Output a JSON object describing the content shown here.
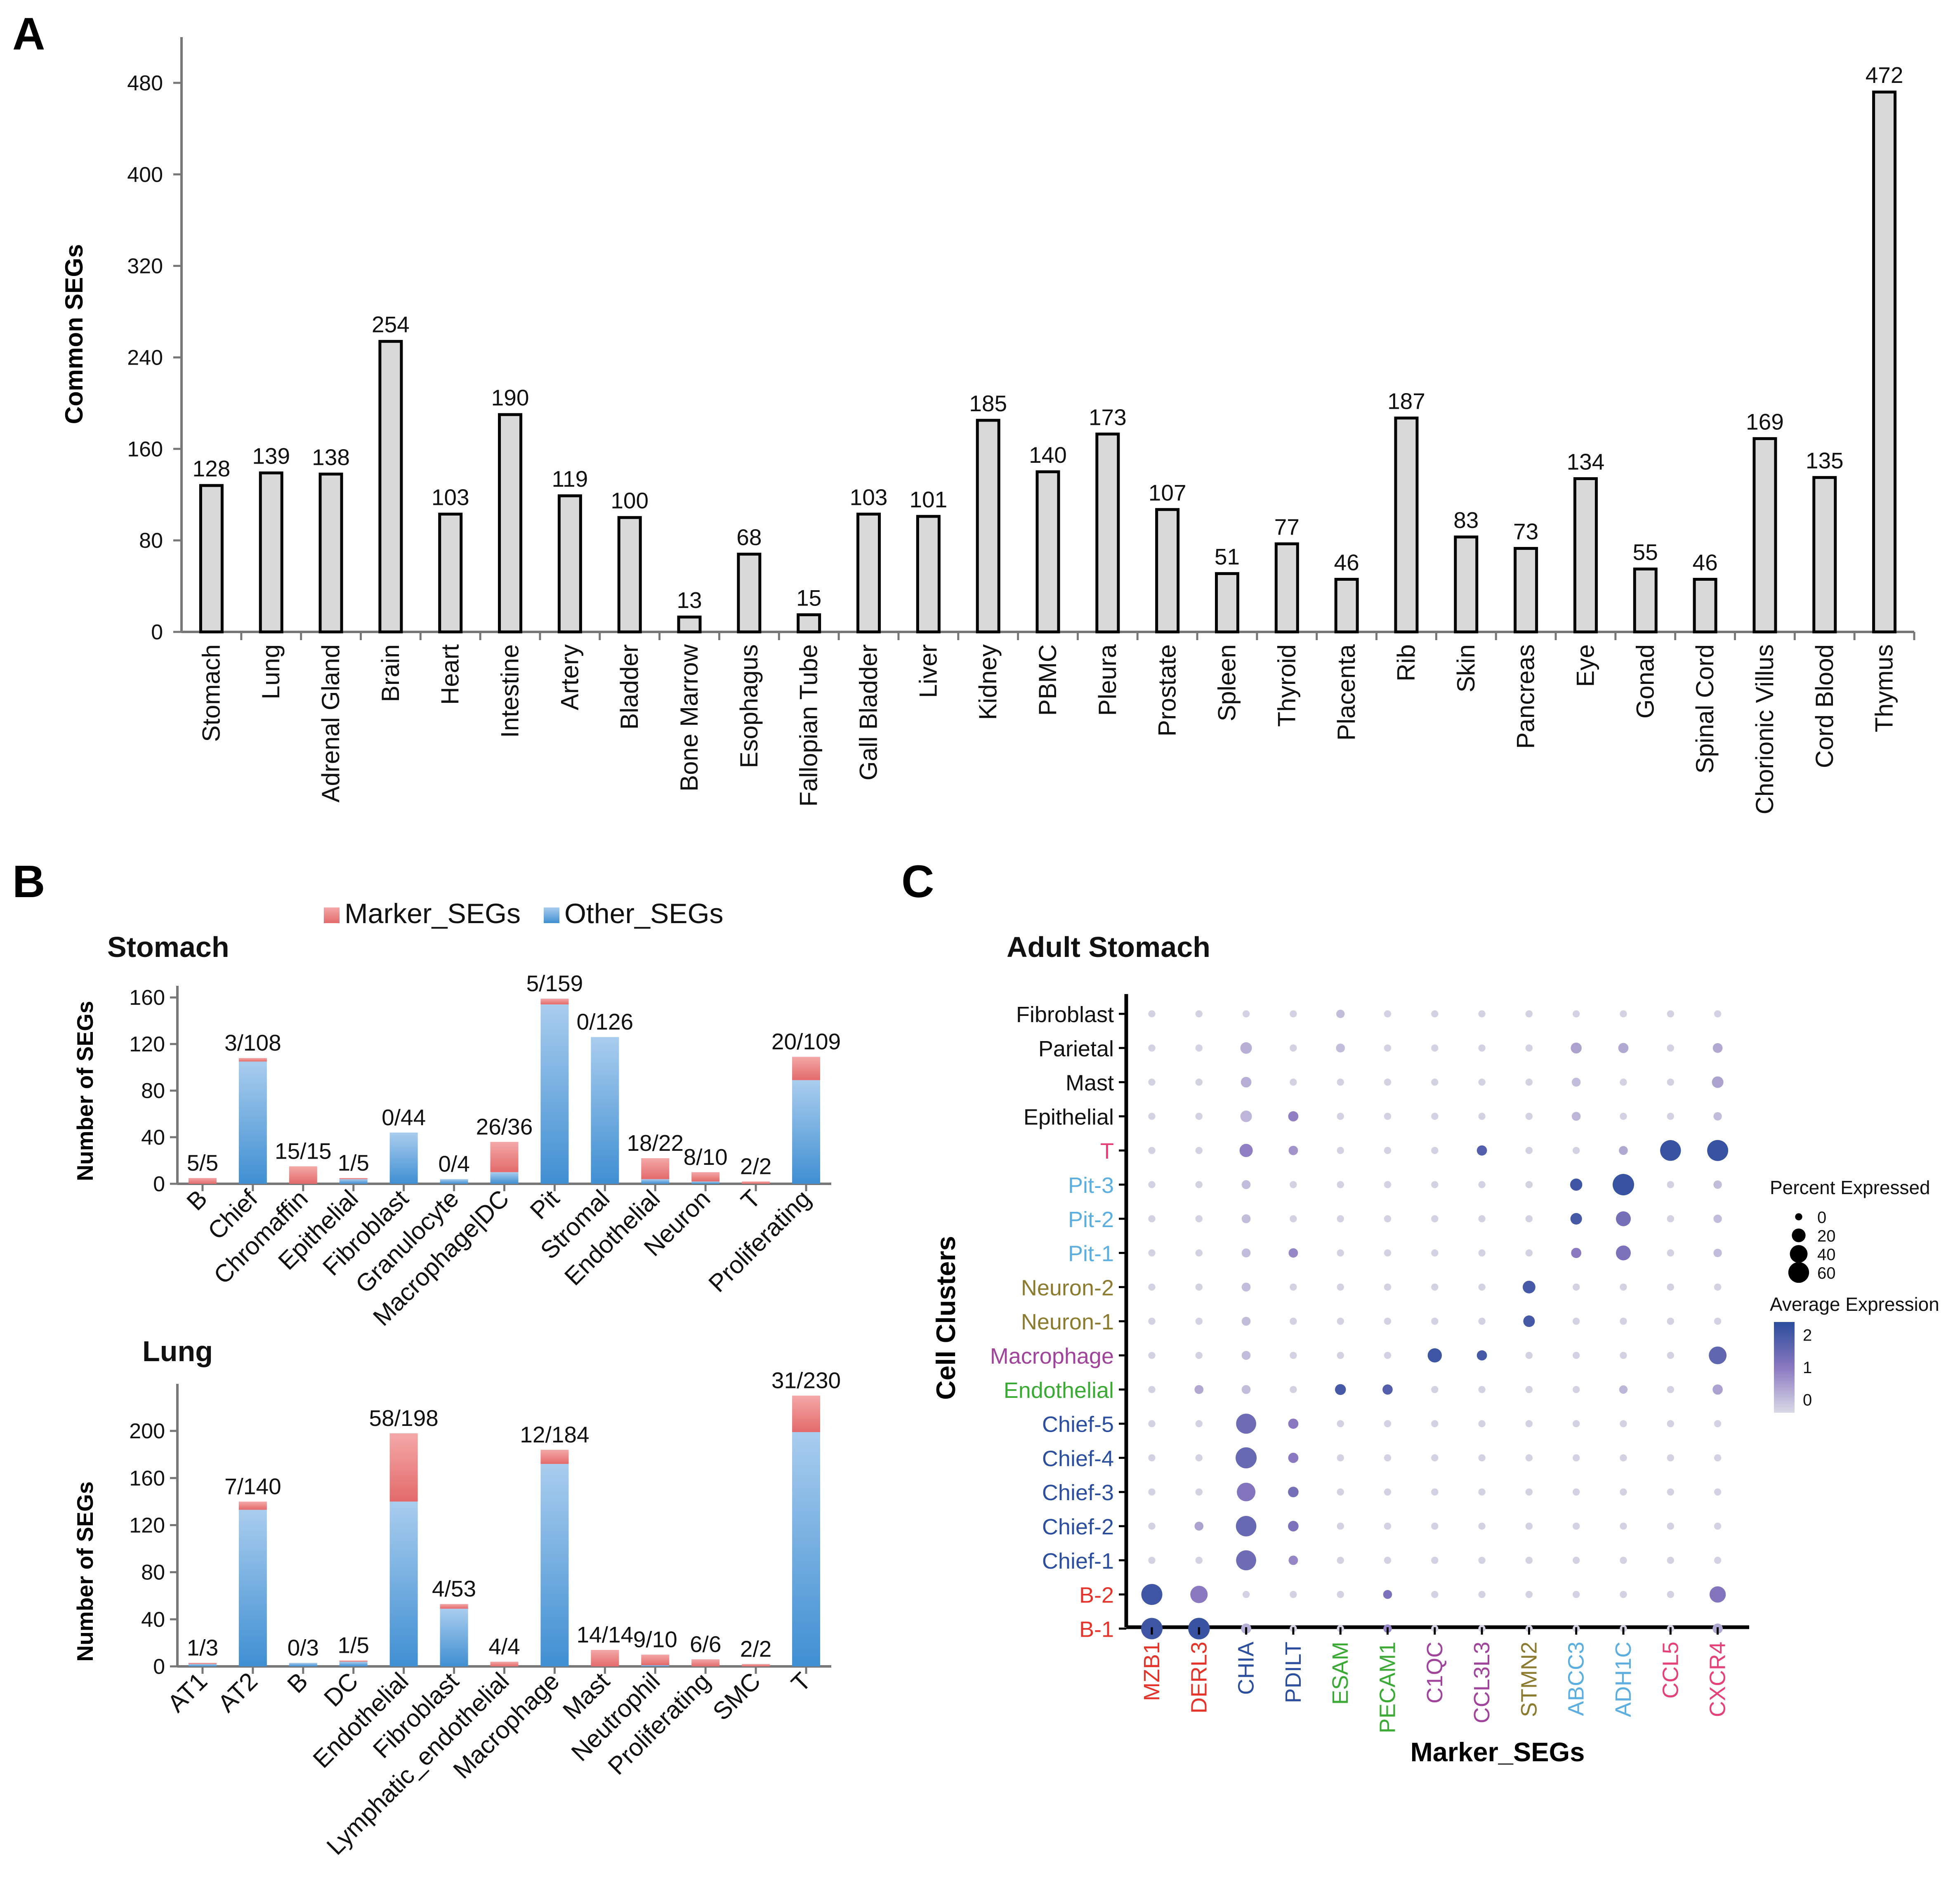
{
  "panels": {
    "a": "A",
    "b": "B",
    "c": "C"
  },
  "colors": {
    "bar_fill": "#d9d9d9",
    "bar_stroke": "#000000",
    "marker_top": "#f4a8a8",
    "marker_bottom": "#e36a6a",
    "other_top": "#a9cdee",
    "other_bottom": "#3f8fd2",
    "expr_low": "#d9d9e6",
    "expr_high": "#2a4d9c"
  },
  "chart_data": [
    {
      "id": "common",
      "type": "bar",
      "title": "",
      "xlabel": "",
      "ylabel": "Common SEGs",
      "ylim": [
        0,
        520
      ],
      "yticks": [
        0,
        80,
        160,
        240,
        320,
        400,
        480
      ],
      "categories": [
        "Stomach",
        "Lung",
        "Adrenal Gland",
        "Brain",
        "Heart",
        "Intestine",
        "Artery",
        "Bladder",
        "Bone Marrow",
        "Esophagus",
        "Fallopian Tube",
        "Gall Bladder",
        "Liver",
        "Kidney",
        "PBMC",
        "Pleura",
        "Prostate",
        "Spleen",
        "Thyroid",
        "Placenta",
        "Rib",
        "Skin",
        "Pancreas",
        "Eye",
        "Gonad",
        "Spinal Cord",
        "Chorionic Villus",
        "Cord Blood",
        "Thymus"
      ],
      "values": [
        128,
        139,
        138,
        254,
        103,
        190,
        119,
        100,
        13,
        68,
        15,
        103,
        101,
        185,
        140,
        173,
        107,
        51,
        77,
        46,
        187,
        83,
        73,
        134,
        55,
        46,
        169,
        135,
        472
      ]
    },
    {
      "id": "stomach",
      "type": "bar",
      "stacked": true,
      "title": "Stomach",
      "ylabel": "Number of SEGs",
      "ylim": [
        0,
        170
      ],
      "yticks": [
        0,
        40,
        80,
        120,
        160
      ],
      "legend": [
        "Marker_SEGs",
        "Other_SEGs"
      ],
      "categories": [
        "B",
        "Chief",
        "Chromaffin",
        "Epithelial",
        "Fibroblast",
        "Granulocyte",
        "Macrophage|DC",
        "Pit",
        "Stromal",
        "Endothelial",
        "Neuron",
        "T",
        "Proliferating"
      ],
      "series": [
        {
          "name": "Marker_SEGs",
          "values": [
            5,
            3,
            15,
            1,
            0,
            0,
            26,
            5,
            0,
            18,
            8,
            2,
            20
          ]
        },
        {
          "name": "Other_SEGs",
          "values": [
            0,
            105,
            0,
            4,
            44,
            4,
            10,
            154,
            126,
            4,
            2,
            0,
            89
          ]
        }
      ],
      "labels": [
        "5/5",
        "3/108",
        "15/15",
        "1/5",
        "0/44",
        "0/4",
        "26/36",
        "5/159",
        "0/126",
        "18/22",
        "8/10",
        "2/2",
        "20/109"
      ]
    },
    {
      "id": "lung",
      "type": "bar",
      "stacked": true,
      "title": "Lung",
      "ylabel": "Number of SEGs",
      "ylim": [
        0,
        240
      ],
      "yticks": [
        0,
        40,
        80,
        120,
        160,
        200
      ],
      "categories": [
        "AT1",
        "AT2",
        "B",
        "DC",
        "Endothelial",
        "Fibroblast",
        "Lymphatic_endothelial",
        "Macrophage",
        "Mast",
        "Neutrophil",
        "Proliferating",
        "SMC",
        "T"
      ],
      "series": [
        {
          "name": "Marker_SEGs",
          "values": [
            1,
            7,
            0,
            1,
            58,
            4,
            4,
            12,
            14,
            9,
            6,
            2,
            31
          ]
        },
        {
          "name": "Other_SEGs",
          "values": [
            2,
            133,
            3,
            4,
            140,
            49,
            0,
            172,
            0,
            1,
            0,
            0,
            199
          ]
        }
      ],
      "labels": [
        "1/3",
        "7/140",
        "0/3",
        "1/5",
        "58/198",
        "4/53",
        "4/4",
        "12/184",
        "14/14",
        "9/10",
        "6/6",
        "2/2",
        "31/230"
      ]
    },
    {
      "id": "dotplot",
      "type": "scatter",
      "title": "Adult Stomach",
      "xlabel": "Marker_SEGs",
      "ylabel": "Cell Clusters",
      "genes": [
        "MZB1",
        "DERL3",
        "CHIA",
        "PDILT",
        "ESAM",
        "PECAM1",
        "C1QC",
        "CCL3L3",
        "STMN2",
        "ABCC3",
        "ADH1C",
        "CCL5",
        "CXCR4"
      ],
      "gene_colors": [
        "#e5332a",
        "#e5332a",
        "#2b4f9e",
        "#2b4f9e",
        "#3aaa35",
        "#3aaa35",
        "#a0449b",
        "#a0449b",
        "#8c7a2e",
        "#5aaee0",
        "#5aaee0",
        "#e6407a",
        "#e6407a"
      ],
      "clusters": [
        "Fibroblast",
        "Parietal",
        "Mast",
        "Epithelial",
        "T",
        "Pit-3",
        "Pit-2",
        "Pit-1",
        "Neuron-2",
        "Neuron-1",
        "Macrophage",
        "Endothelial",
        "Chief-5",
        "Chief-4",
        "Chief-3",
        "Chief-2",
        "Chief-1",
        "B-2",
        "B-1"
      ],
      "cluster_colors": [
        "#111111",
        "#111111",
        "#111111",
        "#111111",
        "#e6407a",
        "#5aaee0",
        "#5aaee0",
        "#5aaee0",
        "#8c7a2e",
        "#8c7a2e",
        "#a0449b",
        "#3aaa35",
        "#2b4f9e",
        "#2b4f9e",
        "#2b4f9e",
        "#2b4f9e",
        "#2b4f9e",
        "#e5332a",
        "#e5332a"
      ],
      "pct_expressed": [
        [
          2,
          2,
          2,
          2,
          4,
          2,
          2,
          2,
          2,
          2,
          2,
          2,
          2
        ],
        [
          2,
          2,
          12,
          2,
          5,
          2,
          2,
          2,
          2,
          10,
          8,
          2,
          7
        ],
        [
          2,
          2,
          9,
          2,
          2,
          2,
          2,
          2,
          2,
          5,
          2,
          2,
          12
        ],
        [
          2,
          2,
          12,
          8,
          2,
          2,
          2,
          2,
          2,
          5,
          2,
          2,
          4
        ],
        [
          2,
          2,
          18,
          6,
          2,
          2,
          2,
          8,
          2,
          2,
          5,
          60,
          62
        ],
        [
          2,
          2,
          5,
          2,
          2,
          2,
          2,
          2,
          2,
          14,
          65,
          2,
          4
        ],
        [
          2,
          2,
          5,
          2,
          2,
          2,
          2,
          2,
          2,
          12,
          25,
          2,
          4
        ],
        [
          2,
          2,
          5,
          6,
          2,
          2,
          2,
          2,
          2,
          8,
          25,
          2,
          4
        ],
        [
          2,
          2,
          5,
          2,
          2,
          2,
          2,
          2,
          16,
          2,
          2,
          2,
          2
        ],
        [
          2,
          2,
          5,
          2,
          2,
          2,
          2,
          2,
          12,
          2,
          2,
          2,
          2
        ],
        [
          2,
          2,
          5,
          2,
          2,
          2,
          22,
          8,
          2,
          2,
          2,
          2,
          40
        ],
        [
          2,
          5,
          5,
          2,
          10,
          8,
          2,
          2,
          2,
          2,
          4,
          2,
          8
        ],
        [
          2,
          2,
          55,
          8,
          2,
          2,
          2,
          2,
          2,
          2,
          2,
          2,
          2
        ],
        [
          2,
          2,
          62,
          8,
          2,
          2,
          2,
          2,
          2,
          2,
          2,
          2,
          2
        ],
        [
          2,
          2,
          45,
          9,
          2,
          2,
          2,
          2,
          2,
          2,
          2,
          2,
          2
        ],
        [
          2,
          5,
          58,
          9,
          2,
          2,
          2,
          2,
          2,
          2,
          2,
          2,
          2
        ],
        [
          2,
          2,
          55,
          6,
          2,
          2,
          2,
          2,
          2,
          2,
          2,
          2,
          2
        ],
        [
          62,
          38,
          2,
          2,
          2,
          5,
          2,
          2,
          2,
          2,
          2,
          2,
          32
        ],
        [
          65,
          66,
          8,
          2,
          2,
          4,
          2,
          2,
          2,
          2,
          2,
          2,
          8
        ]
      ],
      "avg_expression": [
        [
          -0.3,
          -0.3,
          -0.3,
          -0.3,
          0,
          -0.3,
          -0.3,
          -0.3,
          -0.3,
          -0.3,
          -0.3,
          -0.3,
          -0.3
        ],
        [
          -0.3,
          -0.3,
          0.2,
          -0.3,
          0,
          -0.3,
          -0.3,
          -0.3,
          -0.3,
          0.4,
          0.3,
          -0.3,
          0.3
        ],
        [
          -0.3,
          -0.3,
          0.2,
          -0.3,
          -0.3,
          -0.3,
          -0.3,
          -0.3,
          -0.3,
          0,
          -0.3,
          -0.3,
          0.4
        ],
        [
          -0.3,
          -0.3,
          0.1,
          0.9,
          -0.3,
          -0.3,
          -0.3,
          -0.3,
          -0.3,
          0.1,
          -0.3,
          -0.3,
          0
        ],
        [
          -0.3,
          -0.3,
          0.9,
          0.6,
          -0.3,
          -0.3,
          -0.3,
          1.8,
          -0.3,
          -0.3,
          0.3,
          2.2,
          2.2
        ],
        [
          -0.3,
          -0.3,
          0,
          -0.3,
          -0.3,
          -0.3,
          -0.3,
          -0.3,
          -0.3,
          2.1,
          2.2,
          -0.3,
          0
        ],
        [
          -0.3,
          -0.3,
          0,
          -0.3,
          -0.3,
          -0.3,
          -0.3,
          -0.3,
          -0.3,
          2.0,
          1.3,
          -0.3,
          0
        ],
        [
          -0.3,
          -0.3,
          0,
          0.8,
          -0.3,
          -0.3,
          -0.3,
          -0.3,
          -0.3,
          1.0,
          1.2,
          -0.3,
          0
        ],
        [
          -0.3,
          -0.3,
          0,
          -0.3,
          -0.3,
          -0.3,
          -0.3,
          -0.3,
          2.0,
          -0.3,
          -0.3,
          -0.3,
          -0.3
        ],
        [
          -0.3,
          -0.3,
          0,
          -0.3,
          -0.3,
          -0.3,
          -0.3,
          -0.3,
          2.0,
          -0.3,
          -0.3,
          -0.3,
          -0.3
        ],
        [
          -0.3,
          -0.3,
          0,
          -0.3,
          -0.3,
          -0.3,
          2.1,
          2.0,
          -0.3,
          -0.3,
          -0.3,
          -0.3,
          1.6
        ],
        [
          -0.3,
          0.3,
          0,
          -0.3,
          2.0,
          1.8,
          -0.3,
          -0.3,
          -0.3,
          -0.3,
          0.1,
          -0.3,
          0.4
        ],
        [
          -0.3,
          -0.3,
          1.4,
          1.0,
          -0.3,
          -0.3,
          -0.3,
          -0.3,
          -0.3,
          -0.3,
          -0.3,
          -0.3,
          -0.3
        ],
        [
          -0.3,
          -0.3,
          1.5,
          1.0,
          -0.3,
          -0.3,
          -0.3,
          -0.3,
          -0.3,
          -0.3,
          -0.3,
          -0.3,
          -0.3
        ],
        [
          -0.3,
          -0.3,
          1.1,
          1.3,
          -0.3,
          -0.3,
          -0.3,
          -0.3,
          -0.3,
          -0.3,
          -0.3,
          -0.3,
          -0.3
        ],
        [
          -0.3,
          0.4,
          1.5,
          1.2,
          -0.3,
          -0.3,
          -0.3,
          -0.3,
          -0.3,
          -0.3,
          -0.3,
          -0.3,
          -0.3
        ],
        [
          -0.3,
          -0.3,
          1.4,
          0.8,
          -0.3,
          -0.3,
          -0.3,
          -0.3,
          -0.3,
          -0.3,
          -0.3,
          -0.3,
          -0.3
        ],
        [
          2.1,
          1.0,
          -0.3,
          -0.3,
          -0.3,
          1.2,
          -0.3,
          -0.3,
          -0.3,
          -0.3,
          -0.3,
          -0.3,
          1.1
        ],
        [
          2.1,
          2.2,
          0.2,
          -0.3,
          -0.3,
          0.8,
          -0.3,
          -0.3,
          -0.3,
          -0.3,
          -0.3,
          -0.3,
          0.3
        ]
      ],
      "legend_size": {
        "title": "Percent Expressed",
        "values": [
          0,
          20,
          40,
          60
        ]
      },
      "legend_color": {
        "title": "Average Expression",
        "ticks": [
          2,
          1,
          0
        ],
        "range": [
          -0.4,
          2.4
        ]
      }
    }
  ]
}
